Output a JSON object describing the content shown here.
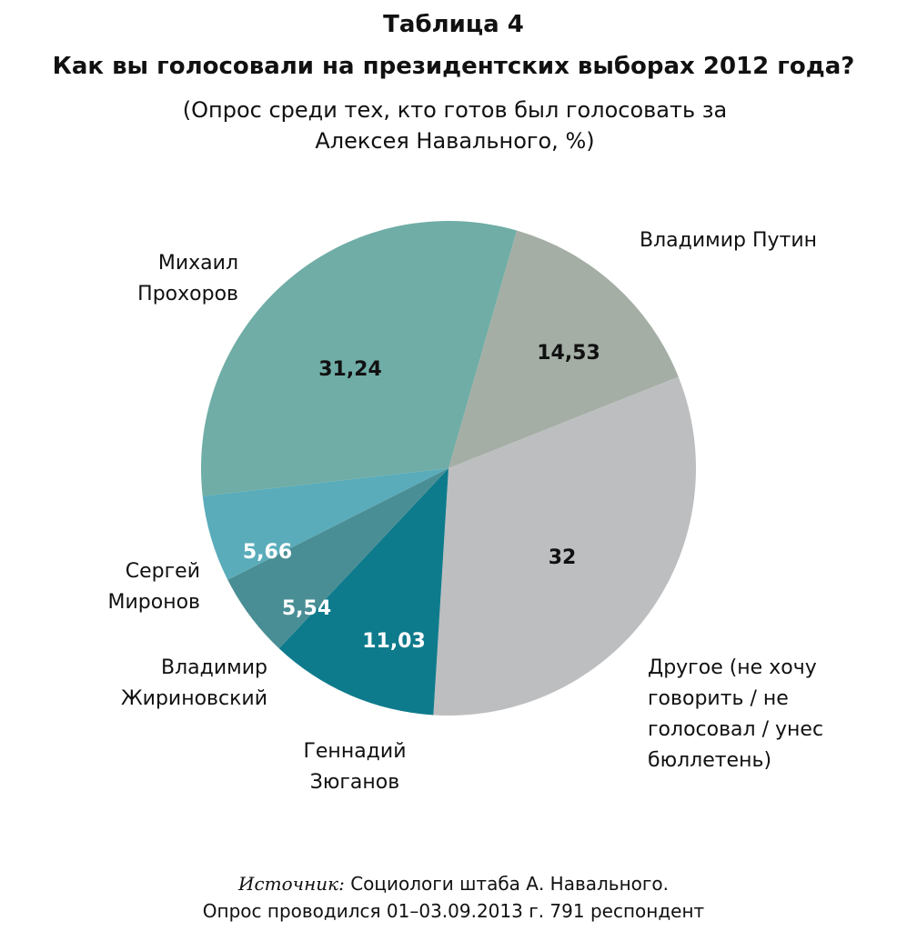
{
  "chart_data": {
    "type": "pie",
    "title": "Таблица 4",
    "subtitle": "Как вы голосовали на президентских выборах 2012 года?",
    "note": "(Опрос среди тех, кто готов был голосовать за Алексея Навального, %)",
    "categories": [
      "Владимир Путин",
      "Другое (не хочу говорить / не голосовал / унес бюллетень)",
      "Геннадий Зюганов",
      "Владимир Жириновский",
      "Сергей Миронов",
      "Михаил Прохоров"
    ],
    "values": [
      14.53,
      32,
      11.03,
      5.54,
      5.66,
      31.24
    ],
    "value_labels": [
      "14,53",
      "32",
      "11,03",
      "5,54",
      "5,66",
      "31,24"
    ],
    "colors": [
      "#a4aea5",
      "#bdbec0",
      "#0e7b8c",
      "#4a8e95",
      "#5aacba",
      "#6fada6"
    ],
    "value_label_colors": [
      "#111111",
      "#111111",
      "#ffffff",
      "#ffffff",
      "#ffffff",
      "#111111"
    ],
    "source": {
      "label": "Источник:",
      "text": "Социологи штаба А. Навального.",
      "detail": "Опрос проводился 01–03.09.2013 г. 791 респондент"
    }
  }
}
